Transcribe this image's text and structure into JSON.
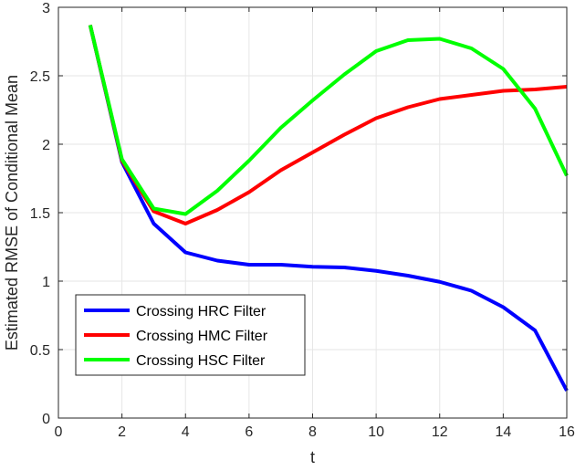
{
  "chart_data": {
    "type": "line",
    "title": "",
    "xlabel": "t",
    "ylabel": "Estimated RMSE of Conditional Mean",
    "xlim": [
      0,
      16
    ],
    "ylim": [
      0,
      3
    ],
    "xticks": [
      0,
      2,
      4,
      6,
      8,
      10,
      12,
      14,
      16
    ],
    "yticks": [
      0,
      0.5,
      1,
      1.5,
      2,
      2.5,
      3
    ],
    "xtick_labels": [
      "0",
      "2",
      "4",
      "6",
      "8",
      "10",
      "12",
      "14",
      "16"
    ],
    "ytick_labels": [
      "0",
      "0.5",
      "1",
      "1.5",
      "2",
      "2.5",
      "3"
    ],
    "grid": true,
    "legend_position": "bottom-left",
    "x": [
      1,
      2,
      3,
      4,
      5,
      6,
      7,
      8,
      9,
      10,
      11,
      12,
      13,
      14,
      15,
      16
    ],
    "series": [
      {
        "name": "Crossing HRC Filter",
        "color": "#0000ff",
        "values": [
          2.87,
          1.87,
          1.42,
          1.21,
          1.15,
          1.12,
          1.12,
          1.105,
          1.1,
          1.075,
          1.04,
          0.995,
          0.93,
          0.81,
          0.64,
          0.2
        ]
      },
      {
        "name": "Crossing HMC Filter",
        "color": "#ff0000",
        "values": [
          2.87,
          1.88,
          1.51,
          1.42,
          1.52,
          1.65,
          1.81,
          1.94,
          2.07,
          2.19,
          2.27,
          2.33,
          2.36,
          2.39,
          2.4,
          2.42
        ]
      },
      {
        "name": "Crossing HSC Filter",
        "color": "#00ff00",
        "values": [
          2.87,
          1.89,
          1.53,
          1.49,
          1.66,
          1.88,
          2.12,
          2.32,
          2.51,
          2.68,
          2.76,
          2.77,
          2.7,
          2.55,
          2.26,
          1.77
        ]
      }
    ]
  }
}
